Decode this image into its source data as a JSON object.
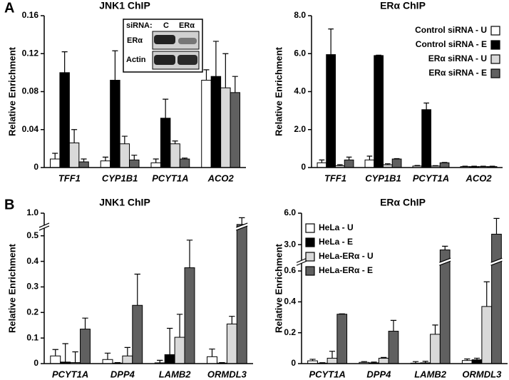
{
  "panels": [
    "A",
    "B"
  ],
  "inset": {
    "header": "siRNA:",
    "lanes": [
      "C",
      "ERα"
    ],
    "rows": [
      "ERα",
      "Actin"
    ]
  },
  "chart_data": [
    {
      "type": "bar",
      "title": "JNK1 ChIP",
      "ylabel": "Relative Enrichment",
      "categories": [
        "TFF1",
        "CYP1B1",
        "PCYT1A",
        "ACO2"
      ],
      "series": [
        {
          "name": "Control siRNA - U",
          "color": "#ffffff",
          "values": [
            0.009,
            0.007,
            0.005,
            0.092
          ],
          "errors": [
            0.006,
            0.004,
            0.004,
            0.011
          ]
        },
        {
          "name": "Control siRNA - E",
          "color": "#000000",
          "values": [
            0.1,
            0.092,
            0.052,
            0.096
          ],
          "errors": [
            0.022,
            0.031,
            0.02,
            0.037
          ]
        },
        {
          "name": "ERα siRNA - U",
          "color": "#d9d9d9",
          "values": [
            0.026,
            0.025,
            0.025,
            0.084
          ],
          "errors": [
            0.014,
            0.008,
            0.003,
            0.036
          ]
        },
        {
          "name": "ERα siRNA - E",
          "color": "#606060",
          "values": [
            0.006,
            0.008,
            0.009,
            0.079
          ],
          "errors": [
            0.003,
            0.005,
            0.001,
            0.017
          ]
        }
      ],
      "ylim": [
        0,
        0.16
      ],
      "yticks": [
        0,
        0.04,
        0.08,
        0.12,
        0.16
      ],
      "grid": false
    },
    {
      "type": "bar",
      "title": "ERα ChIP",
      "ylabel": "Relative Enrichment",
      "categories": [
        "TFF1",
        "CYP1B1",
        "PCYT1A",
        "ACO2"
      ],
      "series": [
        {
          "name": "Control siRNA - U",
          "color": "#ffffff",
          "values": [
            0.25,
            0.4,
            0.08,
            0.05
          ],
          "errors": [
            0.15,
            0.2,
            0.03,
            0.02
          ]
        },
        {
          "name": "Control siRNA - E",
          "color": "#000000",
          "values": [
            5.95,
            5.9,
            3.05,
            0.05
          ],
          "errors": [
            1.35,
            0.02,
            0.35,
            0.02
          ]
        },
        {
          "name": "ERα siRNA - U",
          "color": "#d9d9d9",
          "values": [
            0.1,
            0.15,
            0.08,
            0.05
          ],
          "errors": [
            0.05,
            0.05,
            0.02,
            0.02
          ]
        },
        {
          "name": "ERα siRNA - E",
          "color": "#606060",
          "values": [
            0.4,
            0.45,
            0.25,
            0.05
          ],
          "errors": [
            0.15,
            0.02,
            0.02,
            0.02
          ]
        }
      ],
      "ylim": [
        0,
        8
      ],
      "yticks": [
        0,
        {
          "value": 2,
          "label": "2.0"
        },
        {
          "value": 4,
          "label": "4.0"
        },
        {
          "value": 6,
          "label": "6.0"
        },
        {
          "value": 8,
          "label": "8.0"
        }
      ],
      "grid": false,
      "legend": "upper right"
    },
    {
      "type": "bar",
      "title": "JNK1 ChIP",
      "ylabel": "Relative Enrichment",
      "categories": [
        "PCYT1A",
        "DPP4",
        "LAMB2",
        "ORMDL3"
      ],
      "series": [
        {
          "name": "HeLa - U",
          "color": "#ffffff",
          "values": [
            0.03,
            0.016,
            0.003,
            0.027
          ],
          "errors": [
            0.025,
            0.025,
            0.01,
            0.03
          ]
        },
        {
          "name": "HeLa - E",
          "color": "#000000",
          "values": [
            0.006,
            0.002,
            0.035,
            0.002
          ],
          "errors": [
            0.072,
            0.002,
            0.103,
            0.002
          ]
        },
        {
          "name": "HeLa-ERα - U",
          "color": "#d9d9d9",
          "values": [
            0.004,
            0.03,
            0.103,
            0.155
          ],
          "errors": [
            0.042,
            0.033,
            0.09,
            0.03
          ]
        },
        {
          "name": "HeLa-ERα - E",
          "color": "#606060",
          "values": [
            0.135,
            0.228,
            0.375,
            0.58
          ],
          "errors": [
            0.043,
            0.122,
            0.108,
            0.25
          ]
        }
      ],
      "ylim": [
        0,
        1
      ],
      "ybreak": [
        0.53,
        0.55
      ],
      "yticks": [
        0,
        0.1,
        0.2,
        0.3,
        0.4,
        0.5,
        {
          "value": 1,
          "label": "1.0"
        }
      ],
      "grid": false
    },
    {
      "type": "bar",
      "title": "ERα ChIP",
      "ylabel": "Relative Enrichment",
      "categories": [
        "PCYT1A",
        "DPP4",
        "LAMB2",
        "ORMDL3"
      ],
      "series": [
        {
          "name": "HeLa - U",
          "color": "#ffffff",
          "values": [
            0.018,
            0.008,
            0.003,
            0.02
          ],
          "errors": [
            0.01,
            0.005,
            0.01,
            0.01
          ]
        },
        {
          "name": "HeLa - E",
          "color": "#000000",
          "values": [
            0.003,
            0.005,
            0.005,
            0.025
          ],
          "errors": [
            0.003,
            0.005,
            0.01,
            0.01
          ]
        },
        {
          "name": "HeLa-ERα - U",
          "color": "#d9d9d9",
          "values": [
            0.035,
            0.035,
            0.19,
            0.37
          ],
          "errors": [
            0.045,
            0.005,
            0.06,
            0.16
          ]
        },
        {
          "name": "HeLa-ERα - E",
          "color": "#606060",
          "values": [
            0.32,
            0.21,
            2.5,
            4.0
          ],
          "errors": [
            0.002,
            0.07,
            0.35,
            1.5
          ]
        }
      ],
      "ylim": [
        0,
        6
      ],
      "ybreak": [
        0.65,
        1.5
      ],
      "yticks": [
        0,
        0.2,
        0.4,
        0.6,
        {
          "value": 3,
          "label": "3.0"
        },
        {
          "value": 6,
          "label": "6.0"
        }
      ],
      "grid": false,
      "legend": "upper left"
    }
  ]
}
